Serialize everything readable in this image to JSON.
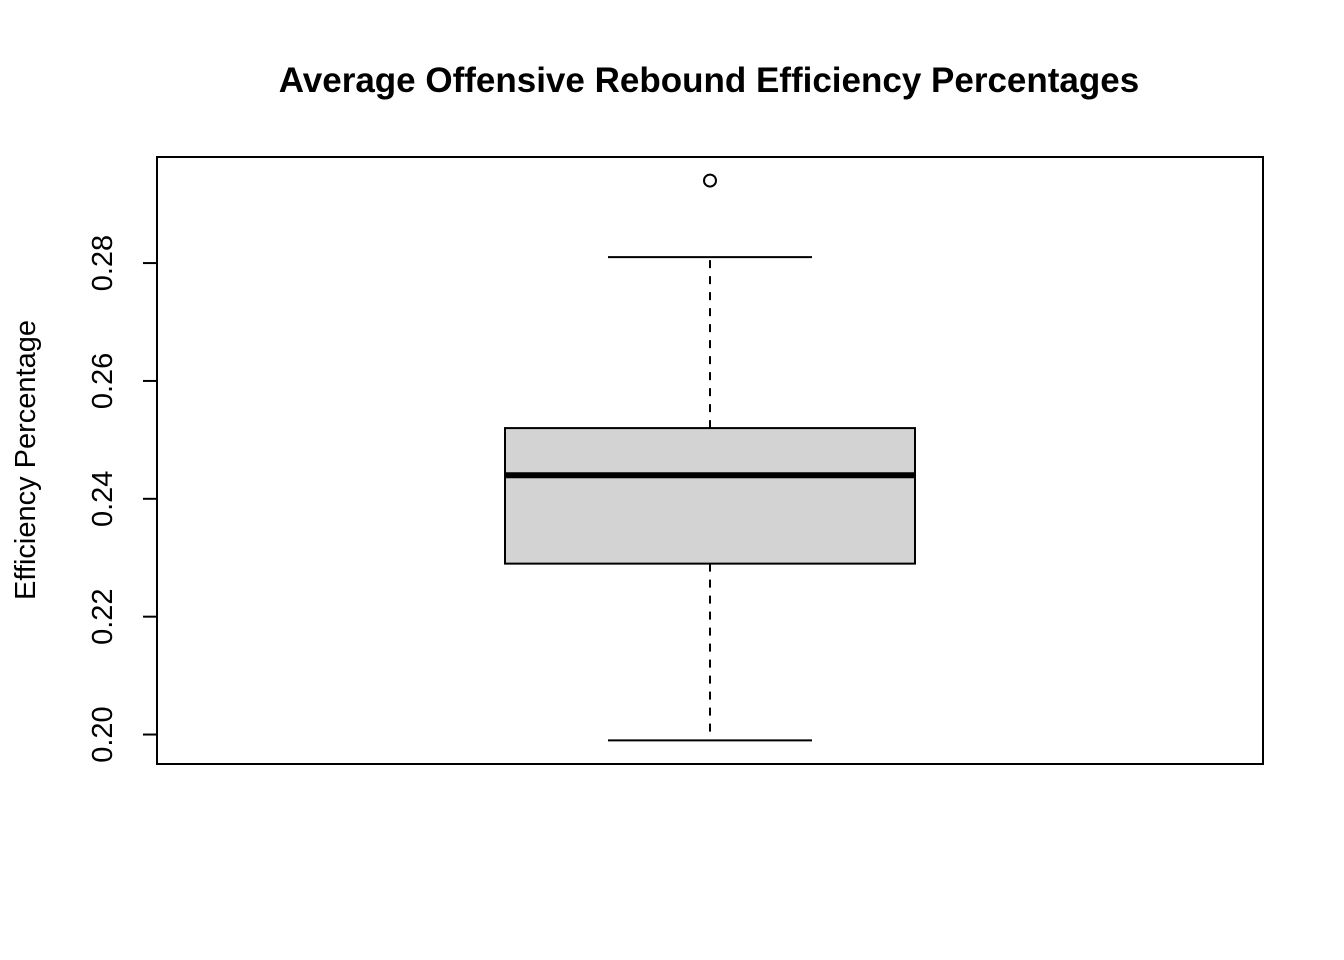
{
  "chart_data": {
    "type": "boxplot",
    "title": "Average Offensive Rebound Efficiency Percentages",
    "xlabel": "",
    "ylabel": "Efficiency Percentage",
    "ylim": [
      0.195,
      0.298
    ],
    "yticks": [
      0.2,
      0.22,
      0.24,
      0.26,
      0.28
    ],
    "ytick_labels": [
      "0.20",
      "0.22",
      "0.24",
      "0.26",
      "0.28"
    ],
    "grid": false,
    "box": {
      "whisker_low": 0.199,
      "q1": 0.229,
      "median": 0.244,
      "q3": 0.252,
      "whisker_high": 0.281,
      "outliers": [
        0.294
      ]
    },
    "colors": {
      "box_fill": "#d3d3d3",
      "stroke": "#000000"
    }
  }
}
